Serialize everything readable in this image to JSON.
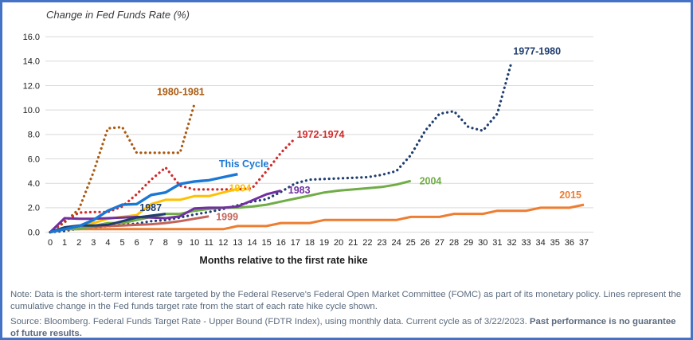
{
  "frame": {
    "border_color": "#4472c4",
    "background_color": "#ffffff",
    "gridline_color": "#d9d9d9",
    "tick_label_color": "#212121"
  },
  "notes": {
    "note": "Note: Data is the short-term interest rate targeted by the Federal Reserve's Federal Open Market Committee (FOMC) as part of its monetary policy.  Lines represent the cumulative change in the Fed funds target rate from the start of each rate hike cycle shown.",
    "source": "Source: Bloomberg. Federal Funds Target Rate - Upper Bound (FDTR Index), using monthly data.  Current cycle as of 3/22/2023.  ",
    "disclaimer": "Past performance is no guarantee of future results."
  },
  "chart_data": {
    "type": "line",
    "title": "Change in Fed Funds Rate (%)",
    "xlabel": "Months relative to the first rate hike",
    "ylabel": "Change in Fed Funds Rate (%)",
    "xlim": [
      0,
      37
    ],
    "ylim": [
      0,
      16
    ],
    "x_tick_step": 1,
    "y_tick_step": 2,
    "y_tick_format_decimals": 1,
    "grid": "horizontal",
    "legend": "inline-labels",
    "x_is_months_since_first_hike": true,
    "series": [
      {
        "name": "1980-1981",
        "color": "#aa5a10",
        "style": "dotted",
        "width": 3.2,
        "label": {
          "text": "1980-1981",
          "x": 7.4,
          "y": 11.5
        },
        "values": [
          0,
          0.8,
          1.9,
          4.9,
          8.5,
          8.6,
          6.5,
          6.5,
          6.5,
          6.5,
          10.5
        ]
      },
      {
        "name": "1972-1974",
        "color": "#d02a2a",
        "style": "dotted",
        "width": 3.2,
        "label": {
          "text": "1972-1974",
          "x": 17.1,
          "y": 8.0
        },
        "values": [
          0,
          0.9,
          1.6,
          1.65,
          1.65,
          2.1,
          3.1,
          4.3,
          5.3,
          3.8,
          3.5,
          3.5,
          3.5,
          3.5,
          3.6,
          5.0,
          6.5,
          7.7
        ]
      },
      {
        "name": "1977-1980",
        "color": "#1f3d6e",
        "style": "dotted",
        "width": 3.2,
        "label": {
          "text": "1977-1980",
          "x": 32.1,
          "y": 14.8
        },
        "values": [
          0,
          0.1,
          0.3,
          0.4,
          0.5,
          0.6,
          0.7,
          0.9,
          1.0,
          1.2,
          1.45,
          1.65,
          1.9,
          2.2,
          2.5,
          2.7,
          3.3,
          4.0,
          4.3,
          4.35,
          4.4,
          4.45,
          4.5,
          4.7,
          5.0,
          6.3,
          8.3,
          9.7,
          9.9,
          8.6,
          8.3,
          9.7,
          14.0
        ]
      },
      {
        "name": "2015",
        "color": "#ed7d31",
        "style": "solid",
        "width": 3,
        "label": {
          "text": "2015",
          "x": 35.3,
          "y": 3.05
        },
        "values": [
          0,
          0.25,
          0.25,
          0.25,
          0.25,
          0.25,
          0.25,
          0.25,
          0.25,
          0.25,
          0.25,
          0.25,
          0.25,
          0.5,
          0.5,
          0.5,
          0.75,
          0.75,
          0.75,
          1.0,
          1.0,
          1.0,
          1.0,
          1.0,
          1.0,
          1.25,
          1.25,
          1.25,
          1.5,
          1.5,
          1.5,
          1.75,
          1.75,
          1.75,
          2.0,
          2.0,
          2.0,
          2.25
        ]
      },
      {
        "name": "1999",
        "color": "#c4635a",
        "style": "solid",
        "width": 3,
        "label": {
          "text": "1999",
          "x": 11.5,
          "y": 1.25
        },
        "values": [
          0,
          0.25,
          0.3,
          0.45,
          0.5,
          0.55,
          0.6,
          0.65,
          0.75,
          0.9,
          1.1,
          1.3
        ]
      },
      {
        "name": "2004",
        "color": "#70ad47",
        "style": "solid",
        "width": 3,
        "label": {
          "text": "2004",
          "x": 25.6,
          "y": 4.2
        },
        "values": [
          0,
          0.25,
          0.25,
          0.5,
          0.75,
          0.75,
          1.0,
          1.25,
          1.5,
          1.5,
          1.75,
          1.9,
          2.0,
          2.0,
          2.1,
          2.25,
          2.5,
          2.75,
          3.0,
          3.25,
          3.4,
          3.5,
          3.6,
          3.7,
          3.9,
          4.2
        ]
      },
      {
        "name": "1994",
        "color": "#ffc000",
        "style": "solid",
        "width": 3,
        "label": {
          "text": "1994",
          "x": 12.4,
          "y": 3.6
        },
        "values": [
          0,
          0.25,
          0.5,
          0.75,
          1.1,
          1.25,
          1.4,
          2.3,
          2.65,
          2.65,
          2.95,
          2.95,
          3.25,
          3.55
        ]
      },
      {
        "name": "1983",
        "color": "#7030a0",
        "style": "solid",
        "width": 3,
        "label": {
          "text": "1983",
          "x": 16.5,
          "y": 3.45
        },
        "values": [
          0,
          1.15,
          1.1,
          1.1,
          1.15,
          1.2,
          1.25,
          1.2,
          1.15,
          1.3,
          1.95,
          2.0,
          2.0,
          2.1,
          2.6,
          3.1,
          3.4
        ]
      },
      {
        "name": "1987",
        "color": "#1f3d6e",
        "style": "solid",
        "width": 3,
        "label": {
          "text": "1987",
          "x": 6.2,
          "y": 2.0
        },
        "values": [
          0,
          0.4,
          0.55,
          0.55,
          0.6,
          0.9,
          1.2,
          1.35,
          1.5
        ]
      },
      {
        "name": "This Cycle",
        "color": "#1a77d4",
        "style": "solid",
        "width": 3.4,
        "label": {
          "text": "This Cycle",
          "x": 11.7,
          "y": 5.6
        },
        "values": [
          0,
          0.25,
          0.5,
          1.0,
          1.75,
          2.25,
          2.3,
          3.05,
          3.25,
          3.95,
          4.15,
          4.25,
          4.5,
          4.75
        ]
      }
    ]
  }
}
